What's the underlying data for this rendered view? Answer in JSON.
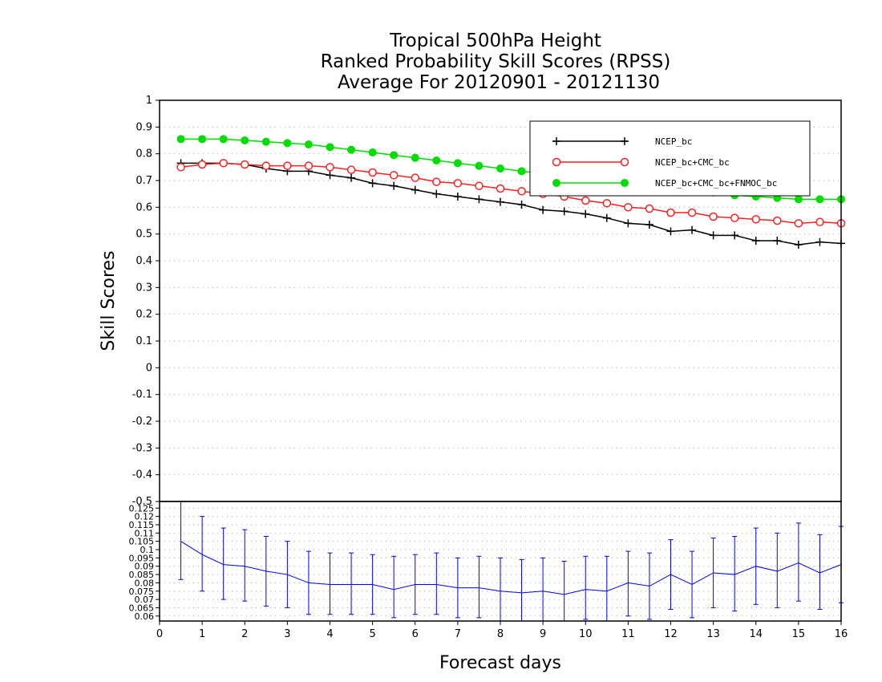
{
  "chart_data": {
    "type": "line",
    "title": [
      "Tropical 500hPa Height",
      "Ranked Probability Skill Scores (RPSS)",
      "Average For 20120901 - 20121130"
    ],
    "xlabel": "Forecast days",
    "ylabel": "Skill Scores",
    "xlim": [
      0,
      16
    ],
    "ylim": [
      -0.5,
      1
    ],
    "x_ticks": [
      "0",
      "1",
      "2",
      "3",
      "4",
      "5",
      "6",
      "7",
      "8",
      "9",
      "10",
      "11",
      "12",
      "13",
      "14",
      "15",
      "16"
    ],
    "y_ticks": [
      "-0.5",
      "-0.4",
      "-0.3",
      "-0.2",
      "-0.1",
      "0",
      "0.1",
      "0.2",
      "0.3",
      "0.4",
      "0.5",
      "0.6",
      "0.7",
      "0.8",
      "0.9",
      "1"
    ],
    "grid": true,
    "legend_position": "top-right",
    "x": [
      0.5,
      1,
      1.5,
      2,
      2.5,
      3,
      3.5,
      4,
      4.5,
      5,
      5.5,
      6,
      6.5,
      7,
      7.5,
      8,
      8.5,
      9,
      9.5,
      10,
      10.5,
      11,
      11.5,
      12,
      12.5,
      13,
      13.5,
      14,
      14.5,
      15,
      15.5,
      16
    ],
    "series": [
      {
        "name": "NCEP_bc",
        "color": "#000000",
        "marker": "plus",
        "values": [
          0.765,
          0.765,
          0.765,
          0.76,
          0.745,
          0.735,
          0.735,
          0.72,
          0.71,
          0.69,
          0.68,
          0.665,
          0.65,
          0.64,
          0.63,
          0.62,
          0.61,
          0.59,
          0.585,
          0.575,
          0.56,
          0.54,
          0.535,
          0.51,
          0.515,
          0.495,
          0.495,
          0.475,
          0.475,
          0.46,
          0.47,
          0.465
        ]
      },
      {
        "name": "NCEP_bc+CMC_bc",
        "color": "#ff2020",
        "marker": "open-circle",
        "values": [
          0.75,
          0.76,
          0.765,
          0.76,
          0.755,
          0.755,
          0.755,
          0.75,
          0.74,
          0.73,
          0.72,
          0.71,
          0.695,
          0.69,
          0.68,
          0.67,
          0.66,
          0.65,
          0.64,
          0.625,
          0.615,
          0.6,
          0.595,
          0.58,
          0.58,
          0.565,
          0.56,
          0.555,
          0.55,
          0.54,
          0.545,
          0.54
        ]
      },
      {
        "name": "NCEP_bc+CMC_bc+FNMOC_bc",
        "color": "#00dd00",
        "marker": "filled-circle",
        "values": [
          0.855,
          0.855,
          0.855,
          0.85,
          0.845,
          0.84,
          0.835,
          0.825,
          0.815,
          0.805,
          0.795,
          0.785,
          0.775,
          0.765,
          0.755,
          0.745,
          0.735,
          0.725,
          0.715,
          0.705,
          0.695,
          0.685,
          0.675,
          0.665,
          0.66,
          0.655,
          0.645,
          0.64,
          0.635,
          0.63,
          0.63,
          0.63
        ]
      }
    ],
    "difference_panel": {
      "type": "line-errorbar",
      "color": "#0000ff",
      "ylim": [
        0.057,
        0.129
      ],
      "y_ticks": [
        "0.06",
        "0.065",
        "0.07",
        "0.075",
        "0.08",
        "0.085",
        "0.09",
        "0.095",
        "0.1",
        "0.105",
        "0.11",
        "0.115",
        "0.12",
        "0.125"
      ],
      "grid": true,
      "values": [
        0.105,
        0.097,
        0.091,
        0.09,
        0.087,
        0.085,
        0.08,
        0.079,
        0.079,
        0.079,
        0.076,
        0.079,
        0.079,
        0.077,
        0.077,
        0.075,
        0.074,
        0.075,
        0.073,
        0.076,
        0.075,
        0.08,
        0.078,
        0.085,
        0.079,
        0.086,
        0.085,
        0.09,
        0.087,
        0.092,
        0.086,
        0.091
      ],
      "upper": [
        0.129,
        0.12,
        0.113,
        0.112,
        0.108,
        0.105,
        0.099,
        0.098,
        0.098,
        0.097,
        0.096,
        0.097,
        0.098,
        0.095,
        0.096,
        0.095,
        0.094,
        0.095,
        0.093,
        0.096,
        0.096,
        0.099,
        0.098,
        0.106,
        0.099,
        0.107,
        0.108,
        0.113,
        0.11,
        0.116,
        0.109,
        0.114
      ],
      "lower": [
        0.082,
        0.075,
        0.07,
        0.069,
        0.066,
        0.065,
        0.061,
        0.061,
        0.061,
        0.061,
        0.059,
        0.061,
        0.061,
        0.059,
        0.059,
        0.057,
        0.057,
        0.057,
        0.057,
        0.058,
        0.057,
        0.06,
        0.058,
        0.064,
        0.059,
        0.065,
        0.063,
        0.067,
        0.065,
        0.069,
        0.064,
        0.068
      ]
    }
  }
}
